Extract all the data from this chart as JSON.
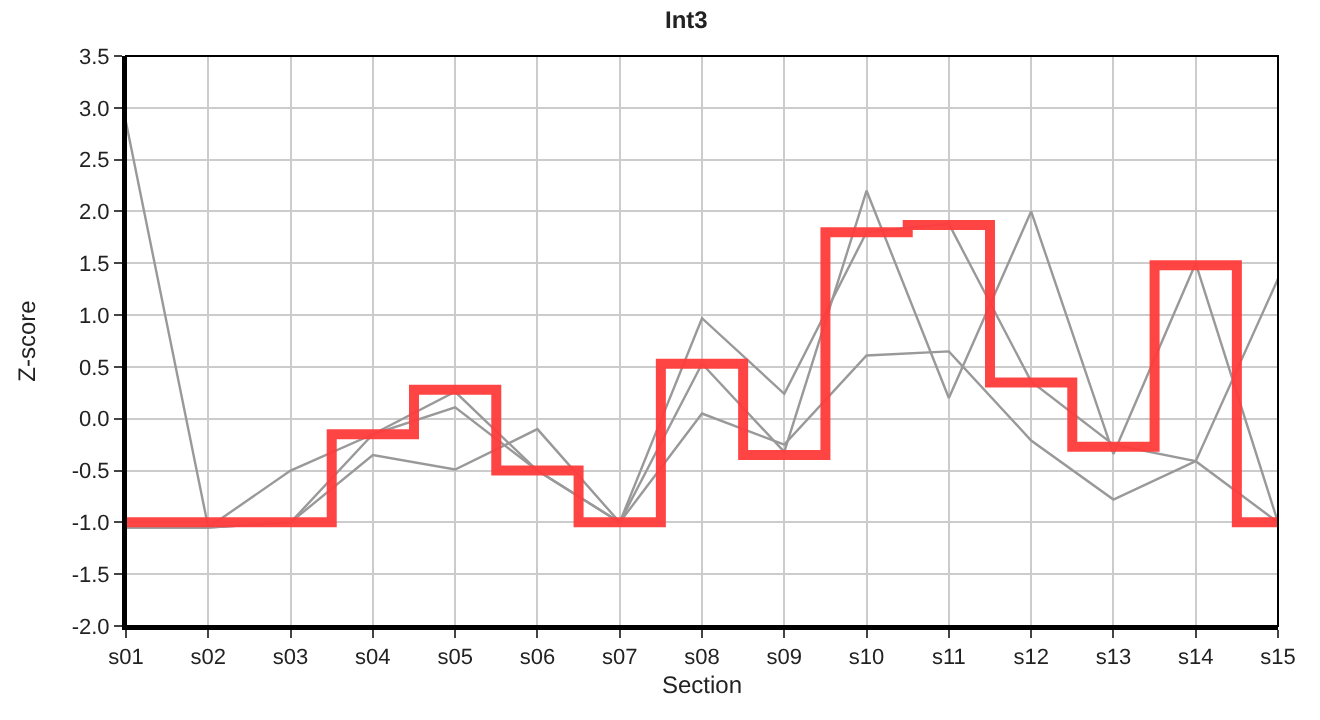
{
  "chart_data": {
    "type": "line",
    "title": "Int3",
    "xlabel": "Section",
    "ylabel": "Z-score",
    "categories": [
      "s01",
      "s02",
      "s03",
      "s04",
      "s05",
      "s06",
      "s07",
      "s08",
      "s09",
      "s10",
      "s11",
      "s12",
      "s13",
      "s14",
      "s15"
    ],
    "series": [
      {
        "color": "#999999",
        "values": [
          2.86,
          -1.05,
          -1.0,
          -0.15,
          0.11,
          -0.5,
          -1.0,
          0.53,
          -0.32,
          2.2,
          0.2,
          2.0,
          -0.34,
          1.5,
          -1.0
        ]
      },
      {
        "color": "#999999",
        "values": [
          -1.05,
          -1.05,
          -0.5,
          -0.15,
          0.26,
          -0.5,
          -1.0,
          0.97,
          0.24,
          1.8,
          1.88,
          0.36,
          -0.25,
          -0.41,
          1.35
        ]
      },
      {
        "color": "#999999",
        "values": [
          -1.05,
          -1.05,
          -1.0,
          -0.35,
          -0.49,
          -0.1,
          -1.0,
          0.05,
          -0.25,
          0.61,
          0.65,
          -0.21,
          -0.78,
          -0.41,
          -1.0
        ]
      },
      {
        "type": "step",
        "color": "#ff3b3b",
        "values": [
          -1.0,
          -1.0,
          -1.0,
          -0.15,
          0.28,
          -0.5,
          -1.0,
          0.53,
          -0.35,
          1.8,
          1.87,
          0.35,
          -0.27,
          1.48,
          -1.0
        ]
      }
    ],
    "ylim": [
      -2.0,
      3.5
    ],
    "yticks": [
      {
        "value": -2,
        "label": "-2.0"
      },
      {
        "value": -1.5,
        "label": "-1.5"
      },
      {
        "value": -1,
        "label": "-1.0"
      },
      {
        "value": -0.5,
        "label": "-0.5"
      },
      {
        "value": 0,
        "label": "0.0"
      },
      {
        "value": 0.5,
        "label": "0.5"
      },
      {
        "value": 1,
        "label": "1.0"
      },
      {
        "value": 1.5,
        "label": "1.5"
      },
      {
        "value": 2,
        "label": "2.0"
      },
      {
        "value": 2.5,
        "label": "2.5"
      },
      {
        "value": 3,
        "label": "3.0"
      },
      {
        "value": 3.5,
        "label": "3.5"
      }
    ],
    "grid": true,
    "marker": "none"
  }
}
